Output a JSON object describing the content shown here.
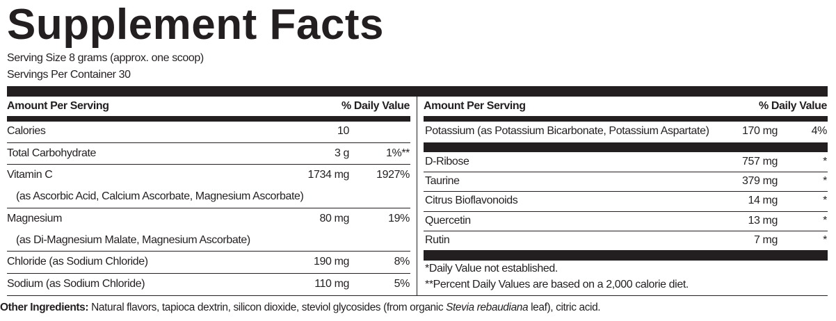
{
  "title": "Supplement Facts",
  "serving_size": "Serving Size 8 grams (approx. one scoop)",
  "servings_per_container": "Servings Per Container 30",
  "left": {
    "header": {
      "amount": "Amount Per Serving",
      "dv": "% Daily Value"
    },
    "rows": [
      {
        "name": "Calories",
        "amount": "10"
      },
      {
        "name": "Total Carbohydrate",
        "amount": "3 g",
        "dv": "1%**"
      },
      {
        "name": "Vitamin C",
        "sub": "(as Ascorbic Acid, Calcium Ascorbate, Magnesium Ascorbate)",
        "amount": "1734 mg",
        "dv": "1927%"
      },
      {
        "name": "Magnesium",
        "sub": "(as Di-Magnesium Malate, Magnesium Ascorbate)",
        "amount": "80 mg",
        "dv": "19%"
      },
      {
        "name": "Chloride (as Sodium Chloride)",
        "amount": "190 mg",
        "dv": "8%"
      },
      {
        "name": "Sodium (as Sodium Chloride)",
        "amount": "110 mg",
        "dv": "5%"
      }
    ]
  },
  "right": {
    "header": {
      "amount": "Amount Per Serving",
      "dv": "% Daily Value"
    },
    "rows": [
      {
        "name": "Potassium (as Potassium Bicarbonate, Potassium Aspartate)",
        "amount": "170 mg",
        "dv": "4%"
      },
      {
        "name": "D-Ribose",
        "amount": "757 mg",
        "dv": "*"
      },
      {
        "name": "Taurine",
        "amount": "379 mg",
        "dv": "*"
      },
      {
        "name": "Citrus Bioflavonoids",
        "amount": "14 mg",
        "dv": "*"
      },
      {
        "name": "Quercetin",
        "amount": "13 mg",
        "dv": "*"
      },
      {
        "name": "Rutin",
        "amount": "7 mg",
        "dv": "*"
      }
    ]
  },
  "footnotes": [
    "*Daily Value not established.",
    "**Percent Daily Values are based on a 2,000 calorie diet."
  ],
  "other_ingredients": {
    "label": "Other Ingredients:",
    "text_before": "Natural flavors, tapioca dextrin, silicon dioxide, steviol glycosides (from organic ",
    "italic": "Stevia rebaudiana",
    "text_after": " leaf), citric acid."
  }
}
